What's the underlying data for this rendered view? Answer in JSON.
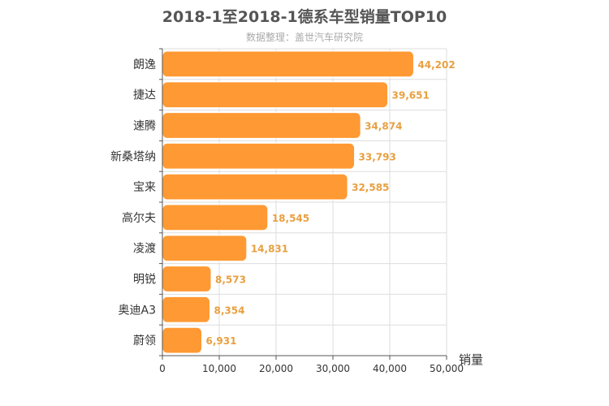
{
  "chart_data": {
    "type": "bar",
    "orientation": "horizontal",
    "title": "2018-1至2018-1德系车型销量TOP10",
    "subtitle": "数据整理：盖世汽车研究院",
    "xlabel": "销量",
    "ylabel": "",
    "categories": [
      "朗逸",
      "捷达",
      "速腾",
      "新桑塔纳",
      "宝来",
      "高尔夫",
      "凌渡",
      "明锐",
      "奥迪A3",
      "蔚领"
    ],
    "values": [
      44202,
      39651,
      34874,
      33793,
      32585,
      18545,
      14831,
      8573,
      8354,
      6931
    ],
    "value_labels": [
      "44,202",
      "39,651",
      "34,874",
      "33,793",
      "32,585",
      "18,545",
      "14,831",
      "8,573",
      "8,354",
      "6,931"
    ],
    "xlim": [
      0,
      50000
    ],
    "xticks": [
      0,
      10000,
      20000,
      30000,
      40000,
      50000
    ],
    "xtick_labels": [
      "0",
      "10,000",
      "20,000",
      "30,000",
      "40,000",
      "50,000"
    ],
    "grid": true,
    "legend": "none",
    "colors": {
      "bar": "#ff9933",
      "bar_stroke": "#ffffff",
      "value_label": "#e8a040",
      "grid": "#dddddd",
      "axis": "#555555",
      "text": "#333333",
      "title": "#555555",
      "subtitle": "#aaaaaa"
    }
  }
}
